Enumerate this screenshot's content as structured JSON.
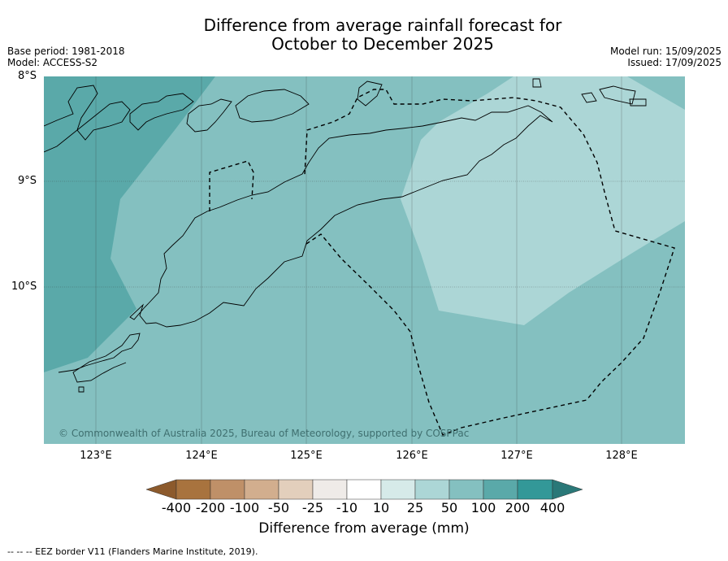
{
  "title_line1": "Difference from average rainfall forecast for",
  "title_line2": "October to December 2025",
  "base_period": "Base period: 1981-2018",
  "model": "Model: ACCESS-S2",
  "model_run": "Model run: 15/09/2025",
  "issued": "Issued: 17/09/2025",
  "lat_labels": [
    "8°S",
    "9°S",
    "10°S"
  ],
  "lon_labels": [
    "123°E",
    "124°E",
    "125°E",
    "126°E",
    "127°E",
    "128°E"
  ],
  "copyright": "© Commonwealth of Australia 2025, Bureau of Meteorology, supported by COSPPac",
  "colorbar": {
    "label": "Difference from average (mm)",
    "ticks": [
      "-400",
      "-200",
      "-100",
      "-50",
      "-25",
      "-10",
      "10",
      "25",
      "50",
      "100",
      "200",
      "400"
    ],
    "colors": [
      "#8c5a2c",
      "#a8733e",
      "#bf9068",
      "#d2ae8e",
      "#e3cfbc",
      "#efebe8",
      "#ffffff",
      "#d6eae9",
      "#acd6d6",
      "#84c0c0",
      "#5aa9a9",
      "#339898",
      "#2a7878"
    ]
  },
  "footnote": "--  --  -- EEZ border V11 (Flanders Marine Institute, 2019).",
  "colors": {
    "band_25_50": "#84c0c0",
    "band_50_100": "#5aa9a9",
    "band_10_25": "#acd6d6",
    "coast": "#000000"
  }
}
